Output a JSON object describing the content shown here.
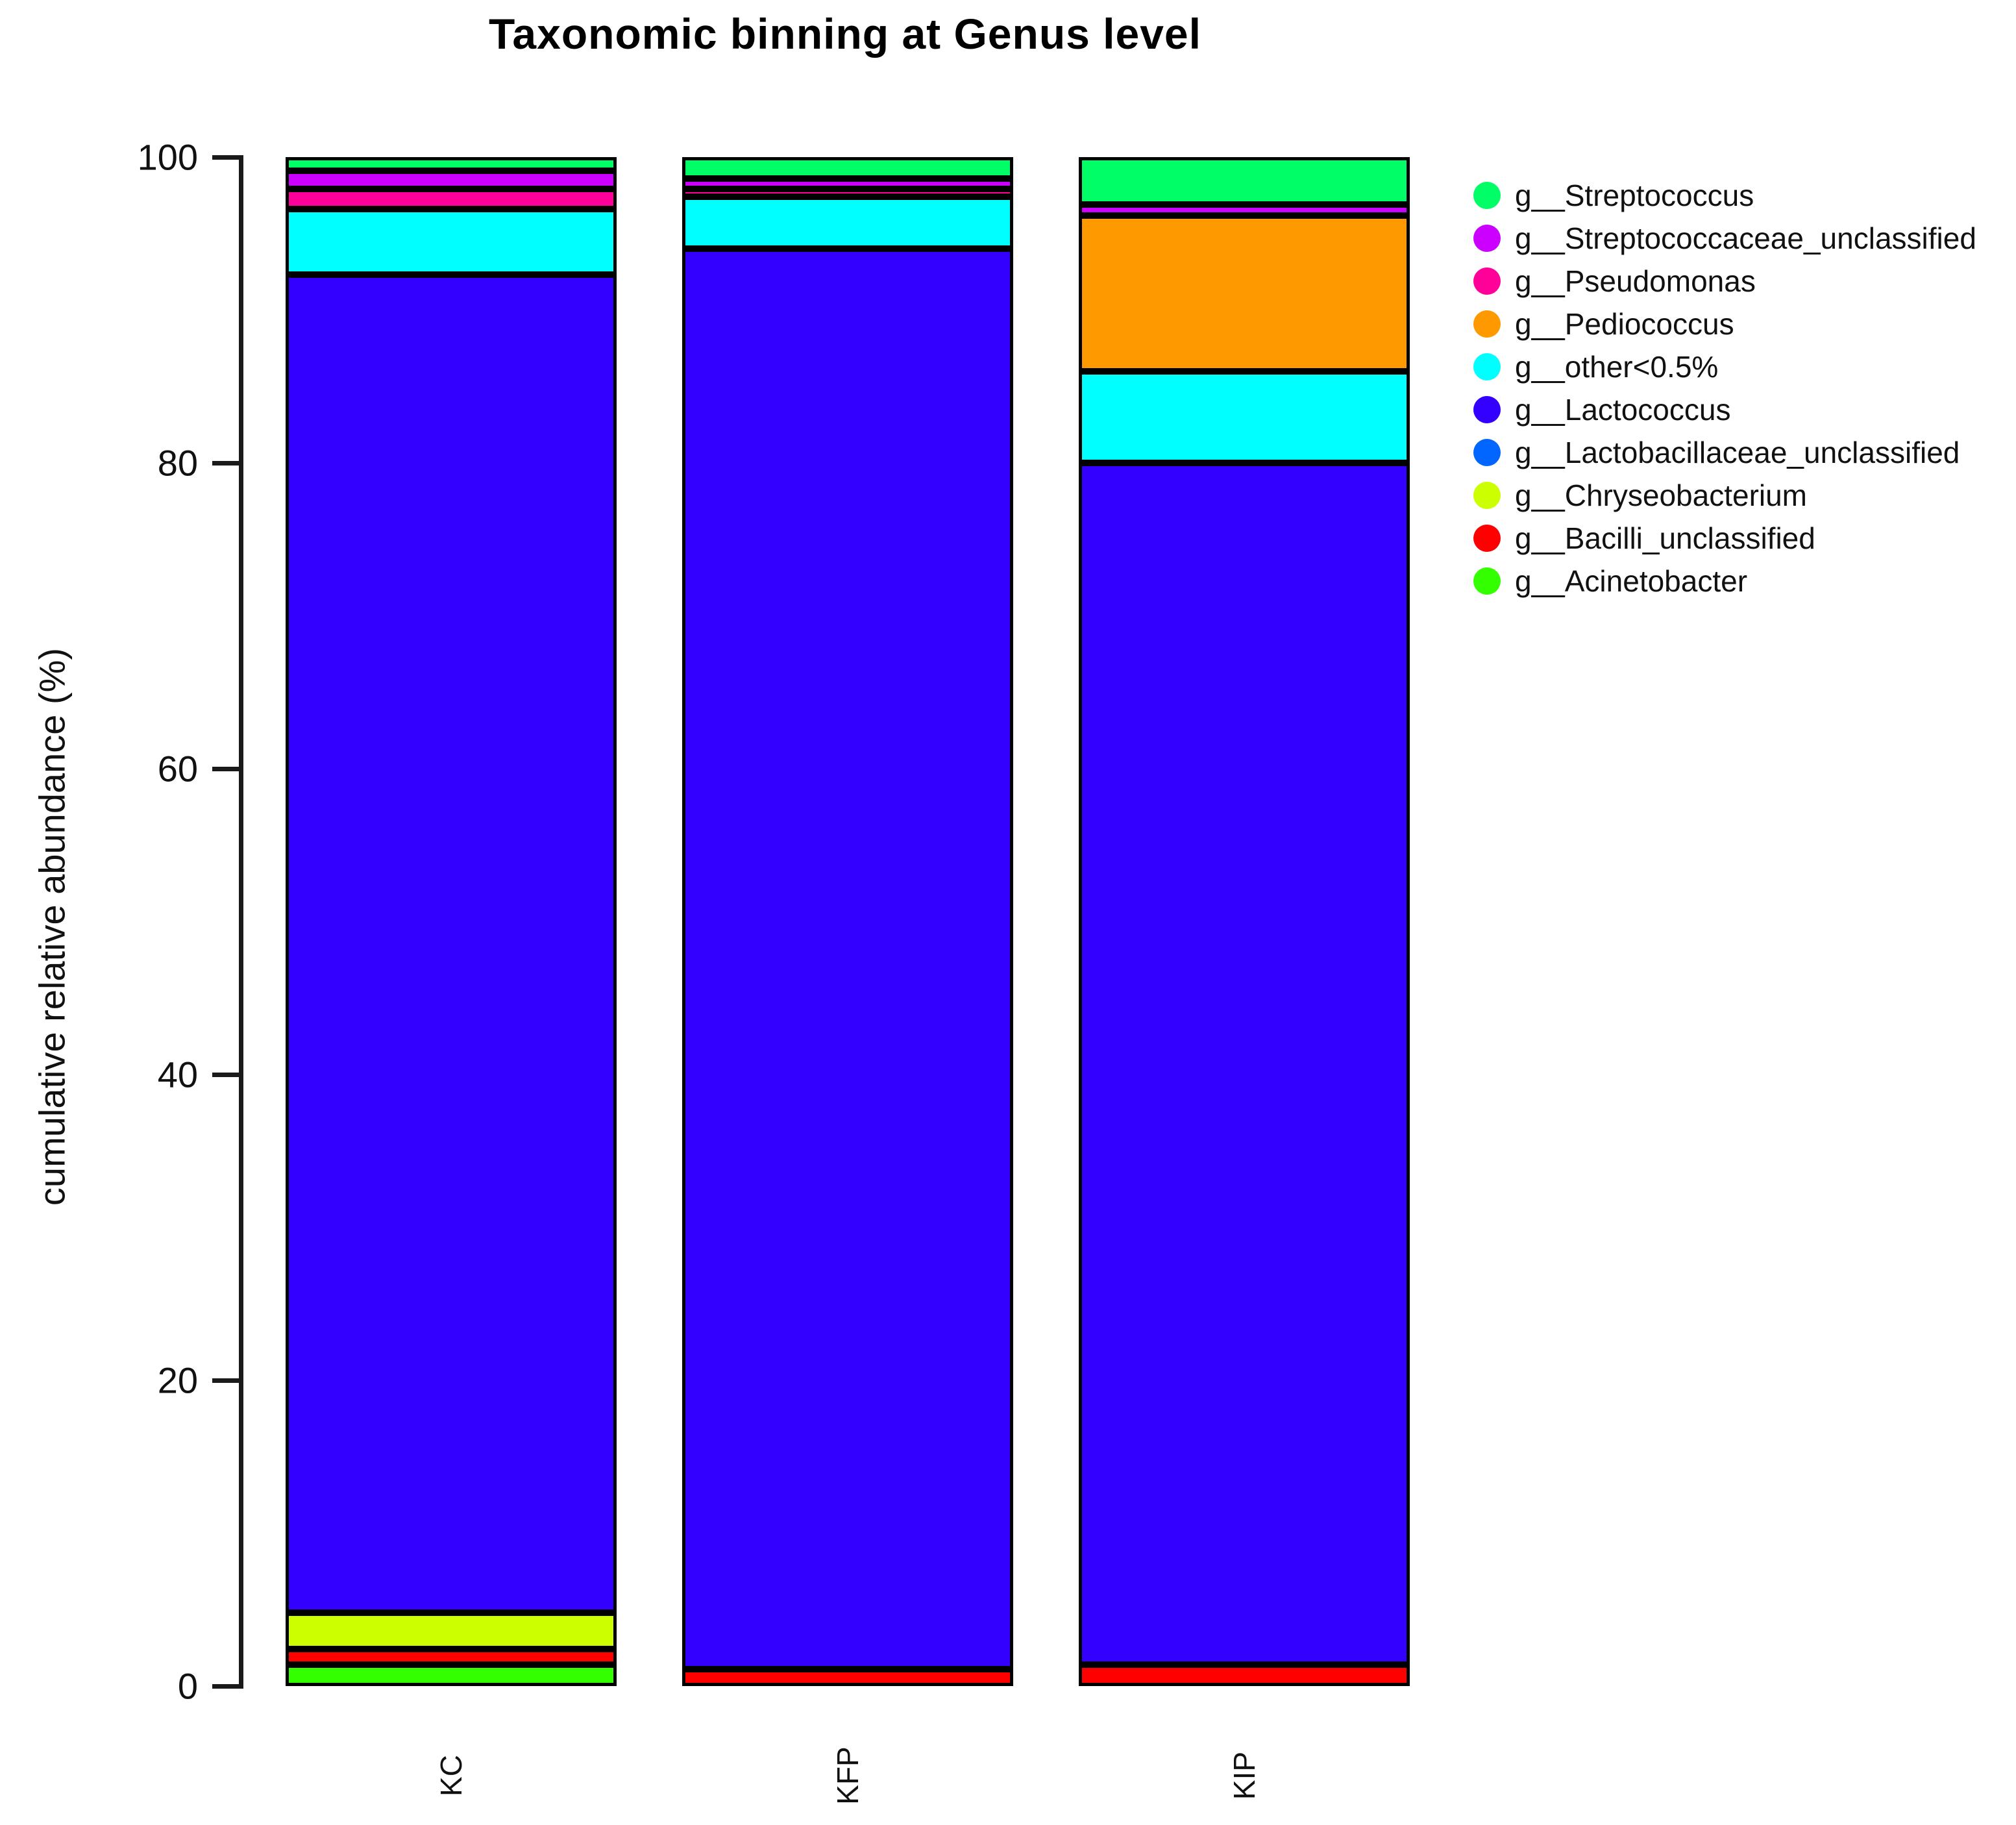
{
  "title": "Taxonomic binning at Genus level",
  "y_axis": {
    "label": "cumulative relative abundance (%)",
    "ticks": [
      0,
      20,
      40,
      60,
      80,
      100
    ],
    "range": [
      0,
      100
    ]
  },
  "x_axis": {
    "categories": [
      "KC",
      "KFP",
      "KIP"
    ]
  },
  "chart_data": {
    "type": "bar",
    "stacked": true,
    "title": "Taxonomic binning at Genus level",
    "xlabel": "",
    "ylabel": "cumulative relative abundance (%)",
    "ylim": [
      0,
      100
    ],
    "yticks": [
      0,
      20,
      40,
      60,
      80,
      100
    ],
    "grid": false,
    "legend_position": "right",
    "categories": [
      "KC",
      "KFP",
      "KIP"
    ],
    "series": [
      {
        "name": "g__Acinetobacter",
        "color": "#33FF00",
        "values": [
          1.4,
          0,
          0
        ]
      },
      {
        "name": "g__Bacilli_unclassified",
        "color": "#FF0000",
        "values": [
          1.0,
          1.1,
          1.4
        ]
      },
      {
        "name": "g__Chryseobacterium",
        "color": "#CCFF00",
        "values": [
          2.4,
          0,
          0
        ]
      },
      {
        "name": "g__Lactobacillaceae_unclassified",
        "color": "#0066FF",
        "values": [
          0,
          0,
          0
        ]
      },
      {
        "name": "g__Lactococcus",
        "color": "#3300FF",
        "values": [
          87.5,
          92.9,
          78.6
        ]
      },
      {
        "name": "g__other<0.5%",
        "color": "#00FFFF",
        "values": [
          4.3,
          3.4,
          6.0
        ]
      },
      {
        "name": "g__Pediococcus",
        "color": "#FF9900",
        "values": [
          0,
          0,
          10.2
        ]
      },
      {
        "name": "g__Pseudomonas",
        "color": "#FF0099",
        "values": [
          1.3,
          0.5,
          0
        ]
      },
      {
        "name": "g__Streptococcaceae_unclassified",
        "color": "#CC00FF",
        "values": [
          1.2,
          0.7,
          0.7
        ]
      },
      {
        "name": "g__Streptococcus",
        "color": "#00FF66",
        "values": [
          0.9,
          1.4,
          3.1
        ]
      }
    ],
    "legend_entries": [
      {
        "label": "g__Streptococcus",
        "color": "#00FF66"
      },
      {
        "label": "g__Streptococcaceae_unclassified",
        "color": "#CC00FF"
      },
      {
        "label": "g__Pseudomonas",
        "color": "#FF0099"
      },
      {
        "label": "g__Pediococcus",
        "color": "#FF9900"
      },
      {
        "label": "g__other<0.5%",
        "color": "#00FFFF"
      },
      {
        "label": "g__Lactococcus",
        "color": "#3300FF"
      },
      {
        "label": "g__Lactobacillaceae_unclassified",
        "color": "#0066FF"
      },
      {
        "label": "g__Chryseobacterium",
        "color": "#CCFF00"
      },
      {
        "label": "g__Bacilli_unclassified",
        "color": "#FF0000"
      },
      {
        "label": "g__Acinetobacter",
        "color": "#33FF00"
      }
    ]
  }
}
